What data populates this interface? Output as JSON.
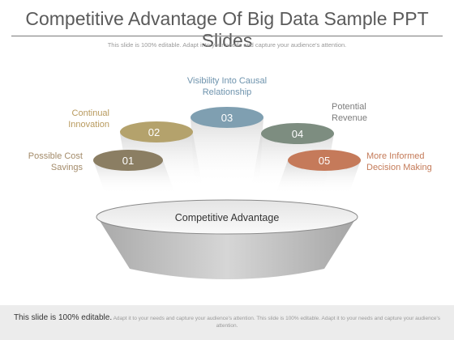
{
  "header": {
    "title": "Competitive Advantage Of Big Data Sample PPT Slides",
    "subtitle": "This slide is 100% editable. Adapt it to your needs and capture your audience's attention."
  },
  "diagram": {
    "base_label": "Competitive Advantage",
    "items": [
      {
        "number": "01",
        "label_line1": "Possible Cost",
        "label_line2": "Savings",
        "color": "#8b7e63",
        "label_color": "#a38b6a"
      },
      {
        "number": "02",
        "label_line1": "Continual",
        "label_line2": "Innovation",
        "color": "#b4a26c",
        "label_color": "#b89a5e"
      },
      {
        "number": "03",
        "label_line1": "Visibility Into Causal",
        "label_line2": "Relationship",
        "color": "#7f9fb1",
        "label_color": "#6e93ad"
      },
      {
        "number": "04",
        "label_line1": "Potential",
        "label_line2": "Revenue",
        "color": "#7d8d80",
        "label_color": "#7c7c7c"
      },
      {
        "number": "05",
        "label_line1": "More Informed",
        "label_line2": "Decision Making",
        "color": "#c57a5a",
        "label_color": "#c47a58"
      }
    ]
  },
  "footer": {
    "lead": "This slide is 100% editable.",
    "text": "Adapt it to your needs and capture your audience's attention. This slide is 100% editable. Adapt it to your needs and capture your audience's attention."
  }
}
